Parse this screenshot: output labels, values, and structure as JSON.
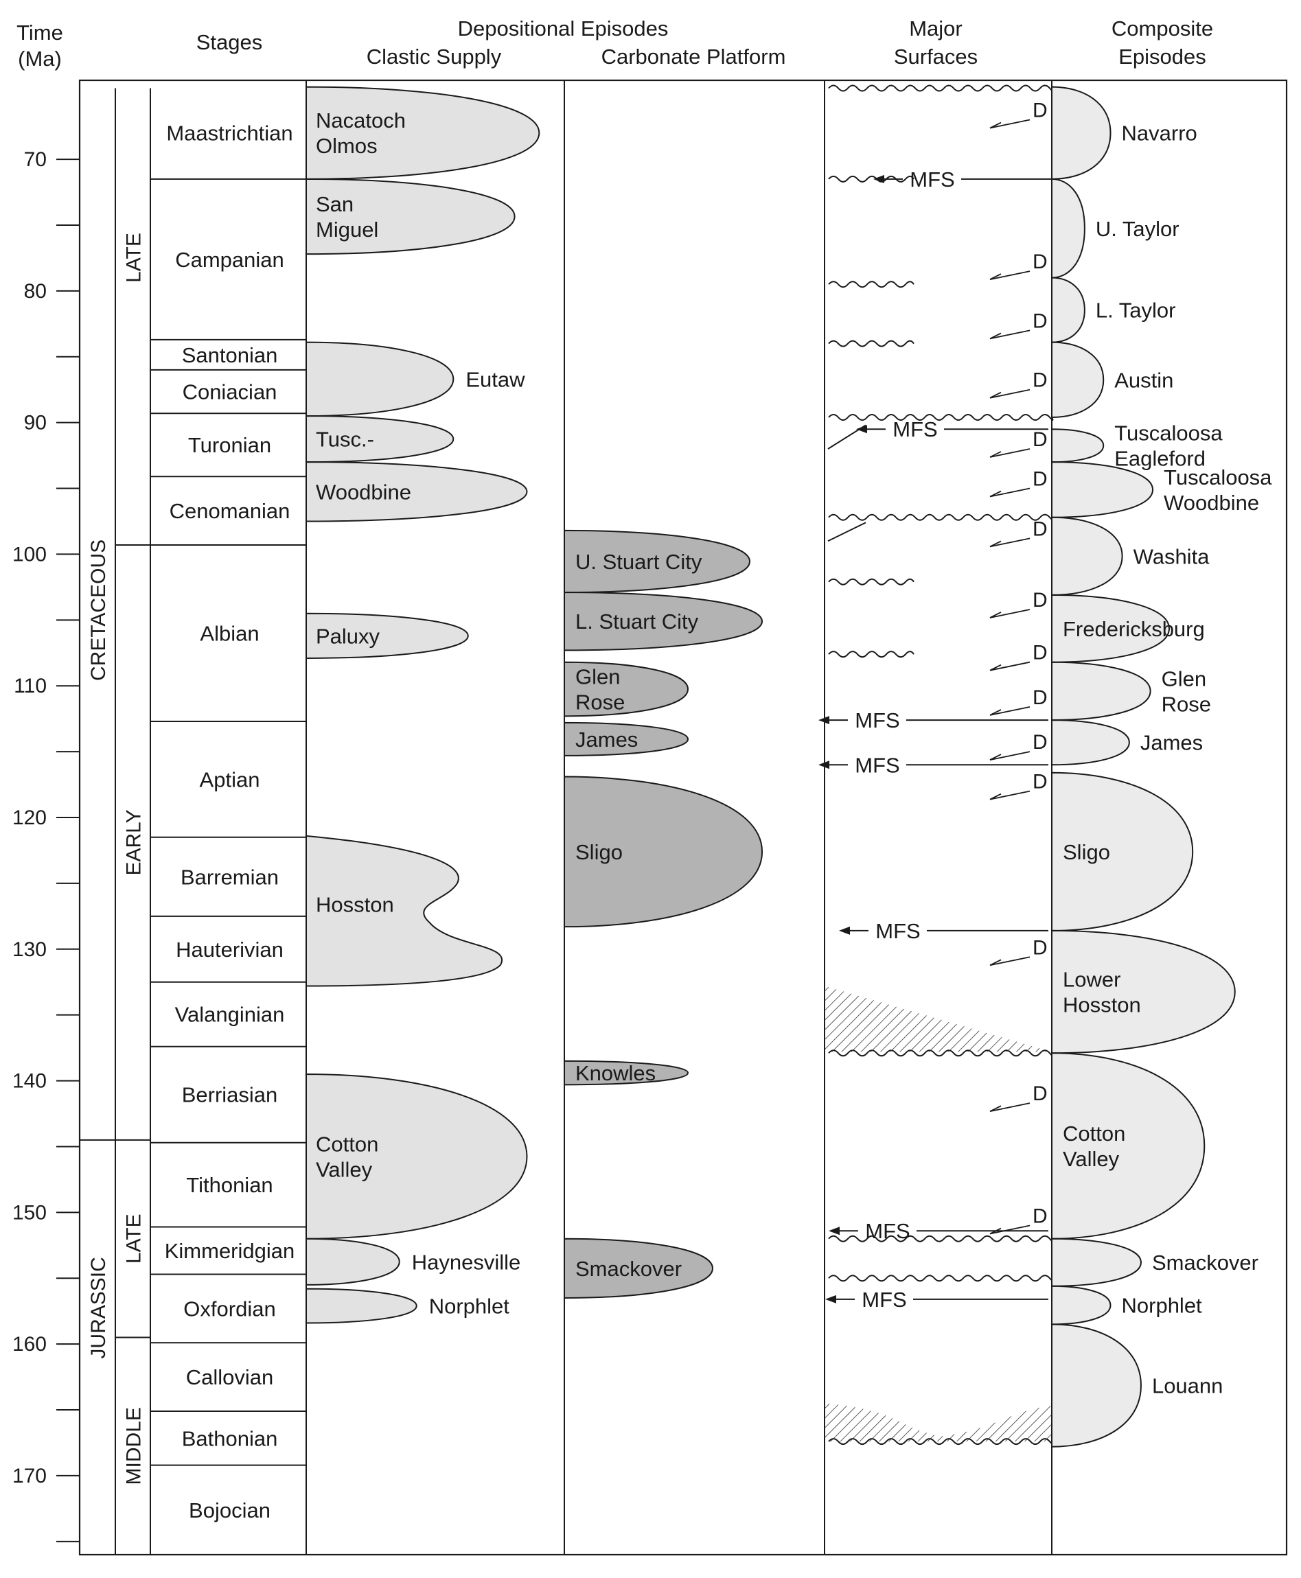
{
  "headers": {
    "time": [
      "Time",
      "(Ma)"
    ],
    "stages": "Stages",
    "depositional": "Depositional Episodes",
    "clastic": "Clastic Supply",
    "carbonate": "Carbonate Platform",
    "surfaces": [
      "Major",
      "Surfaces"
    ],
    "composite": [
      "Composite",
      "Episodes"
    ]
  },
  "time_axis": {
    "min": 64,
    "max": 176,
    "labeled_ticks": [
      70,
      80,
      90,
      100,
      110,
      120,
      130,
      140,
      150,
      160,
      170
    ],
    "minor_ticks": [
      75,
      85,
      95,
      105,
      115,
      125,
      135,
      145,
      155,
      165,
      175
    ]
  },
  "periods": [
    {
      "label": "CRETACEOUS",
      "from": 64,
      "to": 144.5
    },
    {
      "label": "JURASSIC",
      "from": 144.5,
      "to": 176
    }
  ],
  "epochs": [
    {
      "label": "LATE",
      "from": 64,
      "to": 99.3
    },
    {
      "label": "EARLY",
      "from": 99.3,
      "to": 144.5
    },
    {
      "label": "LATE",
      "from": 144.5,
      "to": 159.5
    },
    {
      "label": "MIDDLE",
      "from": 159.5,
      "to": 176
    }
  ],
  "stages": [
    {
      "name": "Maastrichtian",
      "from": 64,
      "to": 71.5
    },
    {
      "name": "Campanian",
      "from": 71.5,
      "to": 83.7
    },
    {
      "name": "Santonian",
      "from": 83.7,
      "to": 86.0
    },
    {
      "name": "Coniacian",
      "from": 86.0,
      "to": 89.3
    },
    {
      "name": "Turonian",
      "from": 89.3,
      "to": 94.1
    },
    {
      "name": "Cenomanian",
      "from": 94.1,
      "to": 99.3
    },
    {
      "name": "Albian",
      "from": 99.3,
      "to": 112.7
    },
    {
      "name": "Aptian",
      "from": 112.7,
      "to": 121.5
    },
    {
      "name": "Barremian",
      "from": 121.5,
      "to": 127.5
    },
    {
      "name": "Hauterivian",
      "from": 127.5,
      "to": 132.5
    },
    {
      "name": "Valanginian",
      "from": 132.5,
      "to": 137.4
    },
    {
      "name": "Berriasian",
      "from": 137.4,
      "to": 144.7
    },
    {
      "name": "Tithonian",
      "from": 144.7,
      "to": 151.1
    },
    {
      "name": "Kimmeridgian",
      "from": 151.1,
      "to": 154.7
    },
    {
      "name": "Oxfordian",
      "from": 154.7,
      "to": 159.9
    },
    {
      "name": "Callovian",
      "from": 159.9,
      "to": 165.1
    },
    {
      "name": "Bathonian",
      "from": 165.1,
      "to": 169.2
    },
    {
      "name": "Bojocian",
      "from": 169.2,
      "to": 176
    }
  ],
  "clastic_episodes": [
    {
      "label": "Nacatoch\nOlmos",
      "from": 64.5,
      "to": 71.5,
      "peak": 0.95
    },
    {
      "label": "San\nMiguel",
      "from": 71.5,
      "to": 77.2,
      "peak": 0.85
    },
    {
      "label": "Eutaw",
      "from": 83.9,
      "to": 89.5,
      "peak": 0.6
    },
    {
      "label": "Tusc.-",
      "from": 89.5,
      "to": 93.0,
      "peak": 0.6
    },
    {
      "label": "Woodbine",
      "from": 93.0,
      "to": 97.5,
      "peak": 0.9
    },
    {
      "label": "Paluxy",
      "from": 104.5,
      "to": 107.9,
      "peak": 0.66
    },
    {
      "label": "Hosston",
      "from": 121.4,
      "to": 132.8,
      "peak": 0.95
    },
    {
      "label": "Cotton\nValley",
      "from": 139.5,
      "to": 152.0,
      "peak": 0.9
    },
    {
      "label": "Haynesville",
      "from": 152.0,
      "to": 155.5,
      "peak": 0.38
    },
    {
      "label": "Norphlet",
      "from": 155.8,
      "to": 158.4,
      "peak": 0.45
    }
  ],
  "carbonate_episodes": [
    {
      "label": "U. Stuart City",
      "from": 98.2,
      "to": 102.9,
      "peak": 0.75
    },
    {
      "label": "L. Stuart City",
      "from": 102.9,
      "to": 107.3,
      "peak": 0.8
    },
    {
      "label": "Glen\nRose",
      "from": 108.2,
      "to": 112.3,
      "peak": 0.5
    },
    {
      "label": "James",
      "from": 112.8,
      "to": 115.3,
      "peak": 0.5
    },
    {
      "label": "Sligo",
      "from": 116.9,
      "to": 128.3,
      "peak": 0.8
    },
    {
      "label": "Knowles",
      "from": 138.5,
      "to": 140.3,
      "peak": 0.5
    },
    {
      "label": "Smackover",
      "from": 152.0,
      "to": 156.5,
      "peak": 0.6
    }
  ],
  "major_surfaces": {
    "unconformities": [
      64.6,
      71.5,
      79.5,
      84.0,
      89.6,
      97.2,
      102.1,
      107.6,
      137.9,
      152.0,
      155.0,
      167.4
    ],
    "mfs_labels": [
      "MFS",
      "MFS",
      "MFS",
      "MFS",
      "MFS",
      "MFS",
      "MFS"
    ],
    "mfs_times": [
      71.5,
      90.5,
      112.6,
      116.0,
      128.6,
      151.4,
      156.6
    ],
    "d_label": "D",
    "d_times": [
      67.0,
      78.5,
      83.0,
      87.5,
      92.0,
      95.0,
      98.8,
      104.2,
      108.2,
      111.6,
      115.0,
      118.0,
      130.6,
      141.7,
      151.0
    ]
  },
  "composite_episodes": [
    {
      "label": "Navarro",
      "from": 64.5,
      "to": 71.5,
      "peak": 0.25
    },
    {
      "label": "U. Taylor",
      "from": 71.5,
      "to": 79.0,
      "peak": 0.14
    },
    {
      "label": "L. Taylor",
      "from": 79.0,
      "to": 83.9,
      "peak": 0.14
    },
    {
      "label": "Austin",
      "from": 83.9,
      "to": 89.6,
      "peak": 0.22
    },
    {
      "label": "Tuscaloosa\nEagleford",
      "from": 90.5,
      "to": 93.0,
      "peak": 0.22
    },
    {
      "label": "Tuscaloosa\nWoodbine",
      "from": 93.0,
      "to": 97.2,
      "peak": 0.43
    },
    {
      "label": "Washita",
      "from": 97.2,
      "to": 103.1,
      "peak": 0.3
    },
    {
      "label": "Fredericksburg",
      "from": 103.1,
      "to": 108.2,
      "peak": 0.5
    },
    {
      "label": "Glen\nRose",
      "from": 108.2,
      "to": 112.6,
      "peak": 0.42
    },
    {
      "label": "James",
      "from": 112.6,
      "to": 116.0,
      "peak": 0.33
    },
    {
      "label": "Sligo",
      "from": 116.6,
      "to": 128.6,
      "peak": 0.6
    },
    {
      "label": "Lower\nHosston",
      "from": 128.6,
      "to": 137.9,
      "peak": 0.78
    },
    {
      "label": "Cotton\nValley",
      "from": 137.9,
      "to": 152.0,
      "peak": 0.65
    },
    {
      "label": "Smackover",
      "from": 152.0,
      "to": 155.6,
      "peak": 0.38
    },
    {
      "label": "Norphlet",
      "from": 155.6,
      "to": 158.5,
      "peak": 0.25
    },
    {
      "label": "Louann",
      "from": 158.5,
      "to": 167.8,
      "peak": 0.38
    }
  ],
  "colors": {
    "clastic_fill": "#e2e2e2",
    "carbonate_fill": "#b3b3b3",
    "composite_fill": "#ebebeb",
    "line": "#1a1a1a"
  }
}
